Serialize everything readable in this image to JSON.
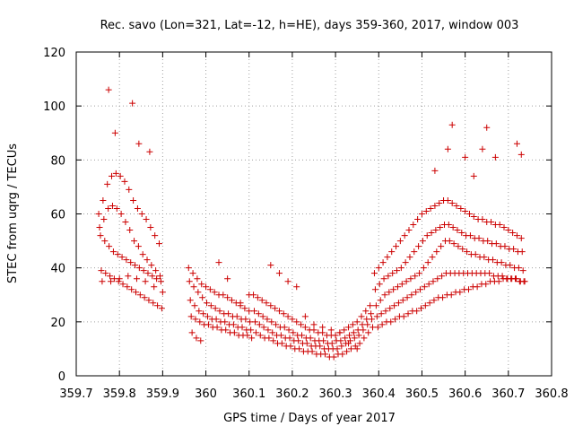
{
  "chart_data": {
    "type": "scatter",
    "title": "Rec. savo (Lon=321, Lat=-12, h=HE), days 359-360, 2017, window 003",
    "xlabel": "GPS time / Days of year 2017",
    "ylabel": "STEC from uqrg / TECUs",
    "xlim": [
      359.7,
      360.8
    ],
    "ylim": [
      0,
      120
    ],
    "x_ticks": [
      "359.7",
      "359.8",
      "359.9",
      "360",
      "360.1",
      "360.2",
      "360.3",
      "360.4",
      "360.5",
      "360.6",
      "360.7",
      "360.8"
    ],
    "x_tick_values": [
      359.7,
      359.8,
      359.9,
      360.0,
      360.1,
      360.2,
      360.3,
      360.4,
      360.5,
      360.6,
      360.7,
      360.8
    ],
    "y_ticks": [
      "0",
      "20",
      "40",
      "60",
      "80",
      "100",
      "120"
    ],
    "y_tick_values": [
      0,
      20,
      40,
      60,
      80,
      100,
      120
    ],
    "grid": true,
    "marker": "plus",
    "color": "#cc0000",
    "series": [
      {
        "x": [
          359.752,
          359.762,
          359.772,
          359.782,
          359.792,
          359.802,
          359.812,
          359.822,
          359.832,
          359.842,
          359.852,
          359.862,
          359.872,
          359.882,
          359.892,
          359.754,
          359.764,
          359.774,
          359.784,
          359.794,
          359.804,
          359.814,
          359.824,
          359.834,
          359.844,
          359.854,
          359.864,
          359.874,
          359.884,
          359.894,
          359.756,
          359.766,
          359.776,
          359.786,
          359.796,
          359.806,
          359.816,
          359.826,
          359.836,
          359.846,
          359.856,
          359.866,
          359.876,
          359.886,
          359.896,
          359.758,
          359.768,
          359.778,
          359.788,
          359.798,
          359.808,
          359.818,
          359.828,
          359.838,
          359.848,
          359.858,
          359.868,
          359.878,
          359.888,
          359.898,
          359.76,
          359.78,
          359.8,
          359.82,
          359.84,
          359.86,
          359.88,
          359.9,
          359.775,
          359.79,
          359.83,
          359.845,
          359.87
        ],
        "y": [
          60,
          65,
          71,
          74,
          75,
          74,
          72,
          69,
          65,
          62,
          60,
          58,
          55,
          52,
          49,
          55,
          58,
          62,
          63,
          62,
          60,
          57,
          54,
          50,
          48,
          45,
          43,
          41,
          39,
          37,
          52,
          50,
          48,
          46,
          45,
          44,
          43,
          42,
          41,
          40,
          39,
          38,
          37,
          36,
          35,
          39,
          38,
          37,
          36,
          35,
          34,
          33,
          32,
          31,
          30,
          29,
          28,
          27,
          26,
          25,
          35,
          35,
          36,
          37,
          36,
          35,
          33,
          31,
          106,
          90,
          101,
          86,
          83
        ]
      },
      {
        "x": [
          359.96,
          359.97,
          359.98,
          359.99,
          360.0,
          360.01,
          360.02,
          360.03,
          360.04,
          360.05,
          360.06,
          360.07,
          360.08,
          360.09,
          360.1,
          359.962,
          359.972,
          359.982,
          359.992,
          360.002,
          360.012,
          360.022,
          360.032,
          360.042,
          360.052,
          360.062,
          360.072,
          360.082,
          360.092,
          360.102,
          359.964,
          359.974,
          359.984,
          359.994,
          360.004,
          360.014,
          360.024,
          360.034,
          360.044,
          360.054,
          360.064,
          360.074,
          360.084,
          360.094,
          360.104,
          359.966,
          359.976,
          359.986,
          359.996,
          360.006,
          360.016,
          360.026,
          360.036,
          360.046,
          360.056,
          360.066,
          360.076,
          360.086,
          360.096,
          360.106,
          359.968,
          359.978,
          359.988,
          360.03,
          360.05,
          360.08,
          360.1
        ],
        "y": [
          40,
          38,
          36,
          34,
          33,
          32,
          31,
          30,
          30,
          29,
          28,
          27,
          26,
          25,
          24,
          35,
          33,
          31,
          29,
          27,
          26,
          25,
          24,
          23,
          23,
          22,
          22,
          21,
          21,
          20,
          28,
          26,
          24,
          23,
          22,
          21,
          21,
          20,
          20,
          19,
          19,
          18,
          18,
          17,
          17,
          22,
          21,
          20,
          19,
          19,
          18,
          18,
          17,
          17,
          16,
          16,
          15,
          15,
          15,
          14,
          16,
          14,
          13,
          42,
          36,
          27,
          30
        ]
      },
      {
        "x": [
          360.11,
          360.12,
          360.13,
          360.14,
          360.15,
          360.16,
          360.17,
          360.18,
          360.19,
          360.2,
          360.21,
          360.22,
          360.23,
          360.24,
          360.25,
          360.26,
          360.27,
          360.28,
          360.29,
          360.3,
          360.31,
          360.32,
          360.33,
          360.34,
          360.35,
          360.36,
          360.37,
          360.38,
          360.112,
          360.122,
          360.132,
          360.142,
          360.152,
          360.162,
          360.172,
          360.182,
          360.192,
          360.202,
          360.212,
          360.222,
          360.232,
          360.242,
          360.252,
          360.262,
          360.272,
          360.282,
          360.292,
          360.302,
          360.312,
          360.322,
          360.332,
          360.342,
          360.352,
          360.362,
          360.372,
          360.382,
          360.114,
          360.124,
          360.134,
          360.144,
          360.154,
          360.164,
          360.174,
          360.184,
          360.194,
          360.204,
          360.214,
          360.224,
          360.234,
          360.244,
          360.254,
          360.264,
          360.274,
          360.284,
          360.294,
          360.304,
          360.314,
          360.324,
          360.334,
          360.344,
          360.354,
          360.364,
          360.374,
          360.384,
          360.116,
          360.126,
          360.136,
          360.146,
          360.156,
          360.166,
          360.176,
          360.186,
          360.196,
          360.206,
          360.216,
          360.226,
          360.236,
          360.246,
          360.256,
          360.266,
          360.276,
          360.286,
          360.296,
          360.306,
          360.316,
          360.326,
          360.336,
          360.346,
          360.356,
          360.366,
          360.376,
          360.386,
          360.15,
          360.17,
          360.19,
          360.21,
          360.23,
          360.25,
          360.27,
          360.29,
          360.31,
          360.33,
          360.35
        ],
        "y": [
          30,
          29,
          28,
          27,
          26,
          25,
          24,
          23,
          22,
          21,
          20,
          19,
          18,
          17,
          17,
          16,
          16,
          15,
          15,
          15,
          16,
          17,
          18,
          19,
          20,
          22,
          24,
          26,
          24,
          23,
          22,
          21,
          20,
          19,
          18,
          18,
          17,
          16,
          15,
          15,
          14,
          14,
          13,
          13,
          13,
          12,
          12,
          13,
          13,
          14,
          15,
          16,
          17,
          19,
          21,
          23,
          20,
          19,
          18,
          17,
          16,
          15,
          15,
          14,
          14,
          13,
          13,
          12,
          12,
          11,
          11,
          11,
          10,
          10,
          10,
          10,
          11,
          12,
          13,
          14,
          15,
          17,
          19,
          21,
          16,
          15,
          14,
          14,
          13,
          12,
          12,
          11,
          11,
          10,
          10,
          9,
          9,
          9,
          8,
          8,
          8,
          7,
          7,
          8,
          8,
          9,
          10,
          11,
          12,
          14,
          16,
          18,
          41,
          38,
          35,
          33,
          22,
          19,
          18,
          17,
          16,
          12,
          10
        ]
      },
      {
        "x": [
          360.39,
          360.4,
          360.41,
          360.42,
          360.43,
          360.44,
          360.45,
          360.46,
          360.47,
          360.48,
          360.49,
          360.5,
          360.51,
          360.52,
          360.53,
          360.54,
          360.55,
          360.56,
          360.57,
          360.58,
          360.59,
          360.6,
          360.61,
          360.62,
          360.63,
          360.64,
          360.65,
          360.66,
          360.67,
          360.68,
          360.69,
          360.7,
          360.71,
          360.72,
          360.73,
          360.392,
          360.402,
          360.412,
          360.422,
          360.432,
          360.442,
          360.452,
          360.462,
          360.472,
          360.482,
          360.492,
          360.502,
          360.512,
          360.522,
          360.532,
          360.542,
          360.552,
          360.562,
          360.572,
          360.582,
          360.592,
          360.602,
          360.612,
          360.622,
          360.632,
          360.642,
          360.652,
          360.662,
          360.672,
          360.682,
          360.692,
          360.702,
          360.712,
          360.722,
          360.732,
          360.394,
          360.404,
          360.414,
          360.424,
          360.434,
          360.444,
          360.454,
          360.464,
          360.474,
          360.484,
          360.494,
          360.504,
          360.514,
          360.524,
          360.534,
          360.544,
          360.554,
          360.564,
          360.574,
          360.584,
          360.594,
          360.604,
          360.614,
          360.624,
          360.634,
          360.644,
          360.654,
          360.664,
          360.674,
          360.684,
          360.694,
          360.704,
          360.714,
          360.724,
          360.734,
          360.396,
          360.406,
          360.416,
          360.426,
          360.436,
          360.446,
          360.456,
          360.466,
          360.476,
          360.486,
          360.496,
          360.506,
          360.516,
          360.526,
          360.536,
          360.546,
          360.556,
          360.566,
          360.576,
          360.586,
          360.596,
          360.606,
          360.616,
          360.626,
          360.636,
          360.646,
          360.656,
          360.666,
          360.676,
          360.686,
          360.696,
          360.706,
          360.716,
          360.726,
          360.736,
          360.398,
          360.408,
          360.418,
          360.428,
          360.438,
          360.448,
          360.458,
          360.468,
          360.478,
          360.488,
          360.498,
          360.508,
          360.518,
          360.528,
          360.538,
          360.548,
          360.558,
          360.568,
          360.578,
          360.588,
          360.598,
          360.608,
          360.618,
          360.628,
          360.638,
          360.648,
          360.658,
          360.668,
          360.678,
          360.688,
          360.698,
          360.708,
          360.718,
          360.728,
          360.738,
          360.53,
          360.56,
          360.57,
          360.6,
          360.62,
          360.64,
          360.65,
          360.67,
          360.72,
          360.73
        ],
        "y": [
          38,
          40,
          42,
          44,
          46,
          48,
          50,
          52,
          54,
          56,
          58,
          60,
          61,
          62,
          63,
          64,
          65,
          65,
          64,
          63,
          62,
          61,
          60,
          59,
          58,
          58,
          57,
          57,
          56,
          56,
          55,
          54,
          53,
          52,
          51,
          32,
          34,
          36,
          37,
          38,
          39,
          40,
          42,
          44,
          46,
          48,
          50,
          52,
          53,
          54,
          55,
          56,
          56,
          55,
          54,
          53,
          52,
          52,
          51,
          51,
          50,
          50,
          49,
          49,
          48,
          48,
          47,
          47,
          46,
          46,
          26,
          28,
          30,
          31,
          32,
          33,
          34,
          35,
          36,
          37,
          38,
          40,
          42,
          44,
          46,
          48,
          50,
          50,
          49,
          48,
          47,
          46,
          45,
          45,
          44,
          44,
          43,
          43,
          42,
          42,
          41,
          41,
          40,
          40,
          39,
          22,
          23,
          24,
          25,
          26,
          27,
          28,
          29,
          30,
          31,
          32,
          33,
          34,
          35,
          36,
          37,
          38,
          38,
          38,
          38,
          38,
          38,
          38,
          38,
          38,
          38,
          38,
          37,
          37,
          37,
          36,
          36,
          36,
          35,
          35,
          18,
          19,
          20,
          20,
          21,
          22,
          22,
          23,
          24,
          24,
          25,
          26,
          27,
          28,
          29,
          29,
          30,
          30,
          31,
          31,
          32,
          32,
          33,
          33,
          34,
          34,
          35,
          35,
          35,
          36,
          36,
          36,
          36,
          35,
          35,
          76,
          84,
          93,
          81,
          74,
          84,
          92,
          81,
          86,
          82
        ]
      }
    ]
  }
}
